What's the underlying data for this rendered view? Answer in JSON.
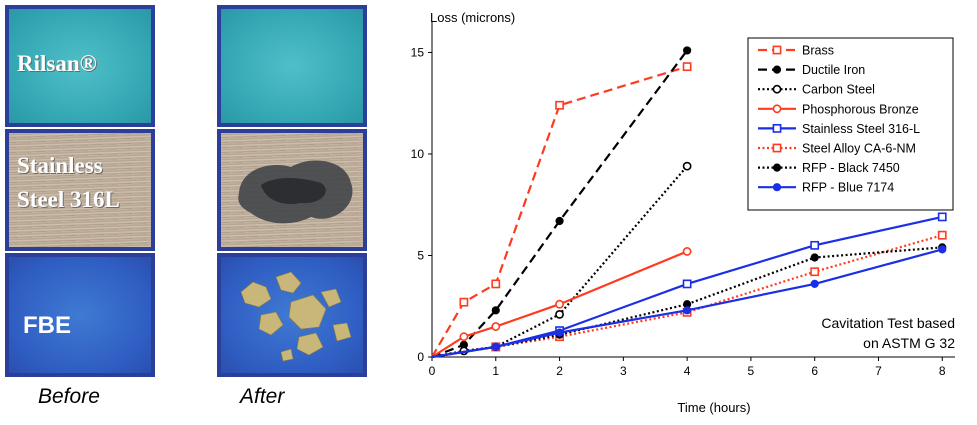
{
  "photos": {
    "rilsan_label": "Rilsan®",
    "steel_label_line1": "Stainless",
    "steel_label_line2": "Steel 316L",
    "fbe_label": "FBE",
    "before_caption": "Before",
    "after_caption": "After"
  },
  "chart_data": {
    "type": "line",
    "title": "",
    "ylabel": "Loss (microns)",
    "xlabel": "Time (hours)",
    "xlim": [
      0,
      8.2
    ],
    "ylim": [
      0,
      16.5
    ],
    "x_ticks": [
      0,
      1,
      2,
      3,
      4,
      5,
      6,
      7,
      8
    ],
    "y_ticks": [
      0,
      5,
      10,
      15
    ],
    "grid": false,
    "legend_position": "top-right",
    "annotation_line1": "Cavitation Test based",
    "annotation_line2": "on ASTM G 32",
    "series": [
      {
        "name": "Brass",
        "color": "#ff3b1f",
        "dash": "dashed",
        "marker": "open-square",
        "x": [
          0,
          0.5,
          1,
          2,
          4
        ],
        "y": [
          0,
          2.7,
          3.6,
          12.4,
          14.3
        ]
      },
      {
        "name": "Ductile Iron",
        "color": "#000000",
        "dash": "dashed",
        "marker": "filled-circle",
        "x": [
          0,
          0.5,
          1,
          2,
          4
        ],
        "y": [
          0,
          0.6,
          2.3,
          6.7,
          15.1
        ]
      },
      {
        "name": "Carbon Steel",
        "color": "#000000",
        "dash": "dotted",
        "marker": "open-circle",
        "x": [
          0,
          0.5,
          1,
          2,
          4
        ],
        "y": [
          0,
          0.3,
          0.5,
          2.1,
          9.4
        ]
      },
      {
        "name": "Phosphorous Bronze",
        "color": "#ff3b1f",
        "dash": "solid",
        "marker": "open-circle",
        "x": [
          0,
          0.5,
          1,
          2,
          4
        ],
        "y": [
          0,
          1.0,
          1.5,
          2.6,
          5.2
        ]
      },
      {
        "name": "Stainless Steel 316-L",
        "color": "#1a2fe6",
        "dash": "solid",
        "marker": "open-square",
        "x": [
          0,
          1,
          2,
          4,
          6,
          8
        ],
        "y": [
          0,
          0.5,
          1.3,
          3.6,
          5.5,
          6.9
        ]
      },
      {
        "name": "Steel Alloy CA-6-NM",
        "color": "#ff3b1f",
        "dash": "dotted",
        "marker": "open-square",
        "x": [
          0,
          1,
          2,
          4,
          6,
          8
        ],
        "y": [
          0,
          0.5,
          1.0,
          2.2,
          4.2,
          6.0
        ]
      },
      {
        "name": "RFP - Black 7450",
        "color": "#000000",
        "dash": "dotted",
        "marker": "filled-circle",
        "x": [
          0,
          1,
          2,
          4,
          6,
          8
        ],
        "y": [
          0,
          0.5,
          1.1,
          2.6,
          4.9,
          5.4
        ]
      },
      {
        "name": "RFP - Blue 7174",
        "color": "#1a2fe6",
        "dash": "solid",
        "marker": "filled-circle",
        "x": [
          0,
          1,
          2,
          4,
          6,
          8
        ],
        "y": [
          0,
          0.5,
          1.2,
          2.3,
          3.6,
          5.3
        ]
      }
    ]
  }
}
